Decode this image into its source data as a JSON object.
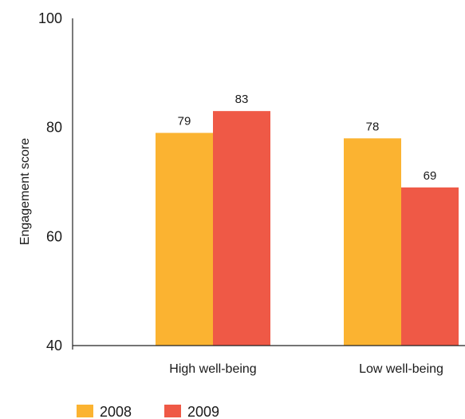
{
  "chart_data": {
    "type": "bar",
    "title": "",
    "xlabel": "",
    "ylabel": "Engagement score",
    "ylim": [
      40,
      100
    ],
    "yticks": [
      40,
      60,
      80,
      100
    ],
    "categories": [
      "High well-being",
      "Low well-being"
    ],
    "series": [
      {
        "name": "2008",
        "color": "#FBB331",
        "values": [
          79,
          78
        ],
        "labels": [
          "79",
          "78"
        ]
      },
      {
        "name": "2009",
        "color": "#EF5946",
        "values": [
          83,
          69
        ],
        "labels": [
          "83",
          "69"
        ]
      }
    ],
    "grid": false,
    "legend": "bottom-left"
  }
}
